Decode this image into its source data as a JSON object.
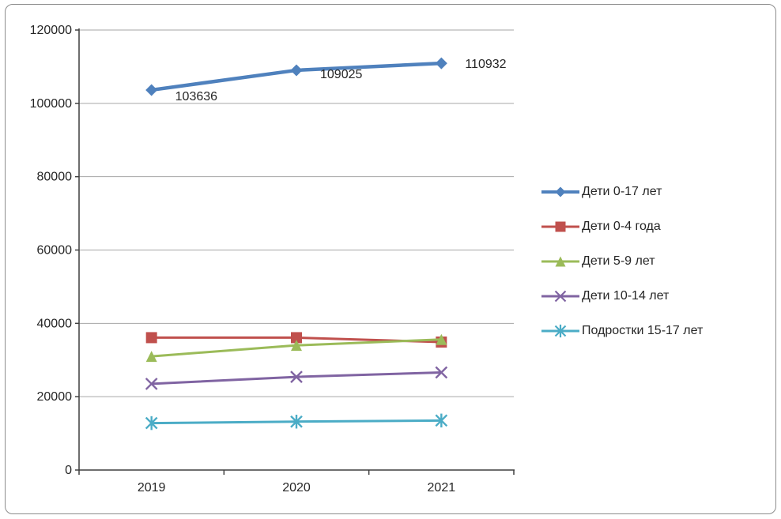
{
  "chart_data": {
    "type": "line",
    "title": "",
    "xlabel": "",
    "ylabel": "",
    "categories": [
      "2019",
      "2020",
      "2021"
    ],
    "series": [
      {
        "name": "Дети 0-17 лет",
        "values": [
          103636,
          109025,
          110932
        ],
        "color": "#4F81BD",
        "marker": "diamond",
        "data_labels": [
          "103636",
          "109025",
          "110932"
        ]
      },
      {
        "name": "Дети 0-4 года",
        "values": [
          36100,
          36100,
          34900
        ],
        "color": "#C0504D",
        "marker": "square"
      },
      {
        "name": "Дети 5-9 лет",
        "values": [
          31000,
          34000,
          35600
        ],
        "color": "#9BBB59",
        "marker": "triangle"
      },
      {
        "name": "Дети  10-14 лет",
        "values": [
          23500,
          25400,
          26600
        ],
        "color": "#8064A2",
        "marker": "x"
      },
      {
        "name": "Подростки 15-17 лет",
        "values": [
          12800,
          13200,
          13500
        ],
        "color": "#4BACC6",
        "marker": "star"
      }
    ],
    "ylim": [
      0,
      120000
    ],
    "ytick_step": 20000,
    "ytick_labels": [
      "0",
      "20000",
      "40000",
      "60000",
      "80000",
      "100000",
      "120000"
    ],
    "grid": true,
    "legend_position": "right",
    "colors": {
      "gridline": "#A6A6A6",
      "axis": "#3F3F3F",
      "text": "#262626",
      "background": "#FFFFFF",
      "frame_border": "#8C8C8C"
    }
  }
}
